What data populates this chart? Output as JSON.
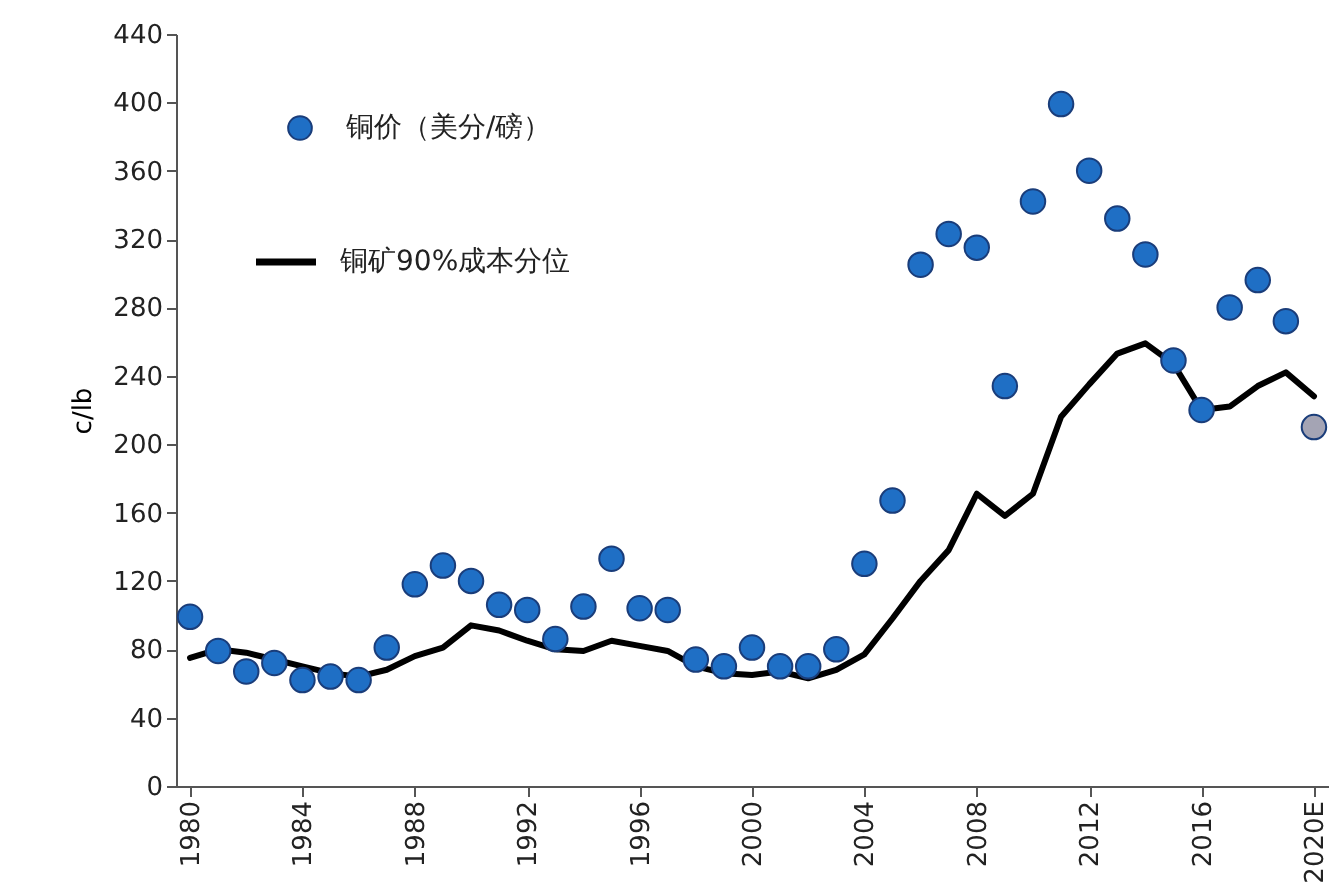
{
  "chart_data": {
    "type": "scatter",
    "ylabel": "c/lb",
    "categories": [
      "1980",
      null,
      null,
      null,
      "1984",
      null,
      null,
      null,
      "1988",
      null,
      null,
      null,
      "1992",
      null,
      null,
      null,
      "1996",
      null,
      null,
      null,
      "2000",
      null,
      null,
      null,
      "2004",
      null,
      null,
      null,
      "2008",
      null,
      null,
      null,
      "2012",
      null,
      null,
      null,
      "2016",
      null,
      null,
      null,
      "2020E"
    ],
    "ylim": [
      0,
      440
    ],
    "yticks": [
      0,
      40,
      80,
      120,
      160,
      200,
      240,
      280,
      320,
      360,
      400,
      440
    ],
    "legend": "top left",
    "grid": false,
    "series": [
      {
        "name": "铜价（美分/磅）",
        "color": "#1f6fc5",
        "colors": [
          "#1f6fc5",
          "#1f6fc5",
          "#1f6fc5",
          "#1f6fc5",
          "#1f6fc5",
          "#1f6fc5",
          "#1f6fc5",
          "#1f6fc5",
          "#1f6fc5",
          "#1f6fc5",
          "#1f6fc5",
          "#1f6fc5",
          "#1f6fc5",
          "#1f6fc5",
          "#1f6fc5",
          "#1f6fc5",
          "#1f6fc5",
          "#1f6fc5",
          "#1f6fc5",
          "#1f6fc5",
          "#1f6fc5",
          "#1f6fc5",
          "#1f6fc5",
          "#1f6fc5",
          "#1f6fc5",
          "#1f6fc5",
          "#1f6fc5",
          "#1f6fc5",
          "#1f6fc5",
          "#1f6fc5",
          "#1f6fc5",
          "#1f6fc5",
          "#1f6fc5",
          "#1f6fc5",
          "#1f6fc5",
          "#1f6fc5",
          "#1f6fc5",
          "#1f6fc5",
          "#1f6fc5",
          "#1f6fc5",
          "#a4a4b4"
        ],
        "values": [
          99,
          79,
          67,
          72,
          62,
          64,
          62,
          81,
          118,
          129,
          120,
          106,
          103,
          86,
          105,
          133,
          104,
          103,
          74,
          70,
          81,
          70,
          70,
          80,
          130,
          167,
          305,
          323,
          315,
          234,
          342,
          399,
          360,
          332,
          311,
          249,
          220,
          280,
          296,
          272,
          210
        ]
      },
      {
        "name": "铜矿90%成本分位",
        "type": "line",
        "color": "#000000",
        "values": [
          75,
          80,
          78,
          74,
          70,
          66,
          64,
          68,
          76,
          81,
          94,
          91,
          85,
          80,
          79,
          85,
          82,
          79,
          70,
          66,
          65,
          67,
          63,
          68,
          77,
          98,
          120,
          138,
          171,
          158,
          171,
          216,
          235,
          253,
          259,
          247,
          220,
          222,
          234,
          242,
          228
        ]
      }
    ]
  }
}
